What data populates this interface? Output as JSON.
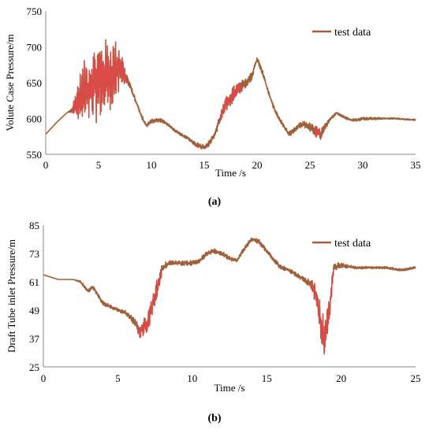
{
  "chart_data": [
    {
      "type": "line",
      "panel_label": "(a)",
      "xlabel": "Time /s",
      "ylabel": "Volute Case Pressure/m",
      "xlim": [
        0,
        35
      ],
      "ylim": [
        550,
        750
      ],
      "xticks": [
        0,
        5,
        10,
        15,
        20,
        25,
        30,
        35
      ],
      "yticks": [
        550,
        600,
        650,
        700,
        750
      ],
      "legend_position": "top-right",
      "grid": false,
      "series": [
        {
          "name": "test data",
          "color": "#A0603A",
          "oscillation_color": "#E04848",
          "x": [
            0,
            1,
            2,
            2.5,
            3,
            3.5,
            4,
            4.5,
            5,
            5.5,
            6,
            6.5,
            7,
            7.5,
            8,
            8.5,
            9,
            9.5,
            10,
            10.5,
            11,
            11.5,
            12,
            12.5,
            13,
            13.5,
            14,
            14.5,
            15,
            15.5,
            16,
            16.5,
            17,
            17.5,
            18,
            18.5,
            19,
            19.5,
            20,
            20.5,
            21,
            21.5,
            22,
            22.5,
            23,
            23.5,
            24,
            24.5,
            25,
            25.5,
            26,
            26.5,
            27,
            27.5,
            28,
            28.5,
            29,
            29.5,
            30,
            31,
            32,
            33,
            34,
            35
          ],
          "y": [
            578,
            594,
            608,
            612,
            622,
            632,
            640,
            645,
            652,
            657,
            660,
            665,
            670,
            660,
            645,
            625,
            605,
            590,
            596,
            598,
            597,
            592,
            586,
            580,
            576,
            572,
            566,
            562,
            560,
            566,
            578,
            600,
            618,
            630,
            638,
            645,
            650,
            660,
            683,
            665,
            640,
            618,
            602,
            590,
            578,
            583,
            590,
            592,
            588,
            582,
            578,
            590,
            600,
            608,
            604,
            600,
            598,
            598,
            600,
            600,
            600,
            600,
            599,
            598
          ],
          "oscillation_amplitude": [
            0,
            0,
            0,
            3,
            30,
            45,
            50,
            55,
            55,
            55,
            50,
            45,
            40,
            10,
            4,
            3,
            3,
            3,
            3,
            3,
            3,
            2,
            2,
            2,
            2,
            2,
            3,
            4,
            4,
            4,
            4,
            8,
            10,
            12,
            10,
            8,
            6,
            6,
            4,
            4,
            3,
            3,
            3,
            3,
            3,
            4,
            4,
            5,
            6,
            8,
            8,
            4,
            2,
            2,
            2,
            2,
            2,
            2,
            2,
            2,
            1,
            1,
            1,
            1
          ]
        }
      ]
    },
    {
      "type": "line",
      "panel_label": "(b)",
      "xlabel": "Time /s",
      "ylabel": "Draft Tube inlet Pressure/m",
      "xlim": [
        0,
        25
      ],
      "ylim": [
        25,
        85
      ],
      "xticks": [
        0,
        5,
        10,
        15,
        20,
        25
      ],
      "yticks": [
        25,
        37,
        49,
        61,
        73,
        85
      ],
      "legend_position": "top-right",
      "grid": false,
      "series": [
        {
          "name": "test data",
          "color": "#A0603A",
          "oscillation_color": "#E04848",
          "x": [
            0,
            1,
            2,
            2.5,
            3,
            3.3,
            4,
            5,
            5.5,
            6,
            6.5,
            7,
            7.5,
            8,
            8.5,
            9,
            9.5,
            10,
            10.5,
            11,
            11.5,
            12,
            12.5,
            13,
            13.5,
            14,
            14.5,
            15,
            15.5,
            16,
            16.5,
            17,
            17.5,
            18,
            18.3,
            18.6,
            18.9,
            19.2,
            19.5,
            20,
            21,
            22,
            23,
            24,
            25
          ],
          "y": [
            64,
            62,
            62,
            61,
            57,
            59,
            52,
            49,
            48,
            45,
            40,
            44,
            55,
            67,
            69,
            69,
            69,
            69,
            70,
            73,
            74,
            73,
            71,
            70,
            75,
            79,
            78,
            74,
            70,
            67,
            66,
            64,
            62,
            60,
            56,
            45,
            36,
            48,
            67,
            68,
            67,
            67,
            67,
            66,
            67
          ],
          "oscillation_amplitude": [
            0,
            0,
            0,
            0.5,
            0.8,
            0.8,
            0.8,
            0.8,
            1,
            1.5,
            3,
            4,
            5,
            2,
            1,
            1,
            1,
            1,
            1,
            1,
            1,
            1,
            1,
            1,
            1,
            1,
            1,
            1,
            1,
            1,
            1,
            1,
            1,
            2,
            5,
            8,
            8,
            6,
            2,
            1,
            0.5,
            0.5,
            0.5,
            0.5,
            0.5
          ]
        }
      ]
    }
  ]
}
